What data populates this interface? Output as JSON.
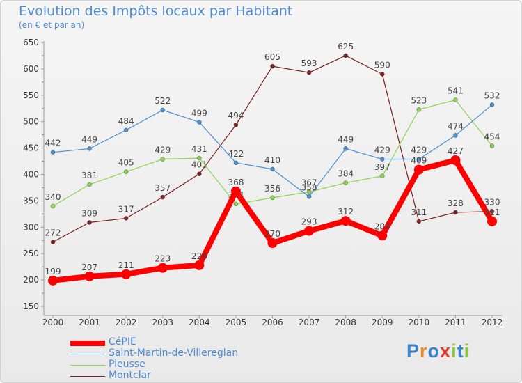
{
  "brand": {
    "text": "Proxiti",
    "letters": [
      {
        "ch": "P",
        "color": "#3a83c8"
      },
      {
        "ch": "r",
        "color": "#f08b22"
      },
      {
        "ch": "o",
        "color": "#3a83c8"
      },
      {
        "ch": "x",
        "color": "#e8372c"
      },
      {
        "ch": "i",
        "color": "#8cc63f"
      },
      {
        "ch": "t",
        "color": "#3a83c8"
      },
      {
        "ch": "i",
        "color": "#8cc63f"
      }
    ]
  },
  "chart_data": {
    "type": "line",
    "title": "Evolution des Impôts locaux par Habitant",
    "subtitle": "(en € et par an)",
    "xlabel": "",
    "ylabel": "",
    "categories": [
      "2000",
      "2001",
      "2002",
      "2003",
      "2004",
      "2005",
      "2006",
      "2007",
      "2008",
      "2009",
      "2010",
      "2011",
      "2012"
    ],
    "ylim": [
      150,
      650
    ],
    "yticks": [
      150,
      200,
      250,
      300,
      350,
      400,
      450,
      500,
      550,
      600,
      650
    ],
    "grid": false,
    "legend_position": "bottom-left",
    "series": [
      {
        "name": "Montclar",
        "color": "#7a1f1f",
        "values": [
          272,
          309,
          317,
          357,
          401,
          494,
          605,
          593,
          625,
          590,
          311,
          328,
          330
        ]
      },
      {
        "name": "Pieusse",
        "color": "#8cd450",
        "values": [
          340,
          381,
          405,
          429,
          431,
          344,
          356,
          367,
          384,
          397,
          523,
          541,
          454
        ]
      },
      {
        "name": "Saint-Martin-de-Villereglan",
        "color": "#4a8fd0",
        "values": [
          442,
          449,
          484,
          522,
          499,
          422,
          410,
          358,
          449,
          429,
          429,
          474,
          532
        ]
      },
      {
        "name": "CéPIE",
        "color": "#ff0000",
        "values": [
          199,
          207,
          211,
          223,
          228,
          368,
          270,
          293,
          312,
          284,
          409,
          427,
          311
        ]
      }
    ],
    "legend": [
      "CéPIE",
      "Saint-Martin-de-Villereglan",
      "Pieusse",
      "Montclar"
    ]
  }
}
